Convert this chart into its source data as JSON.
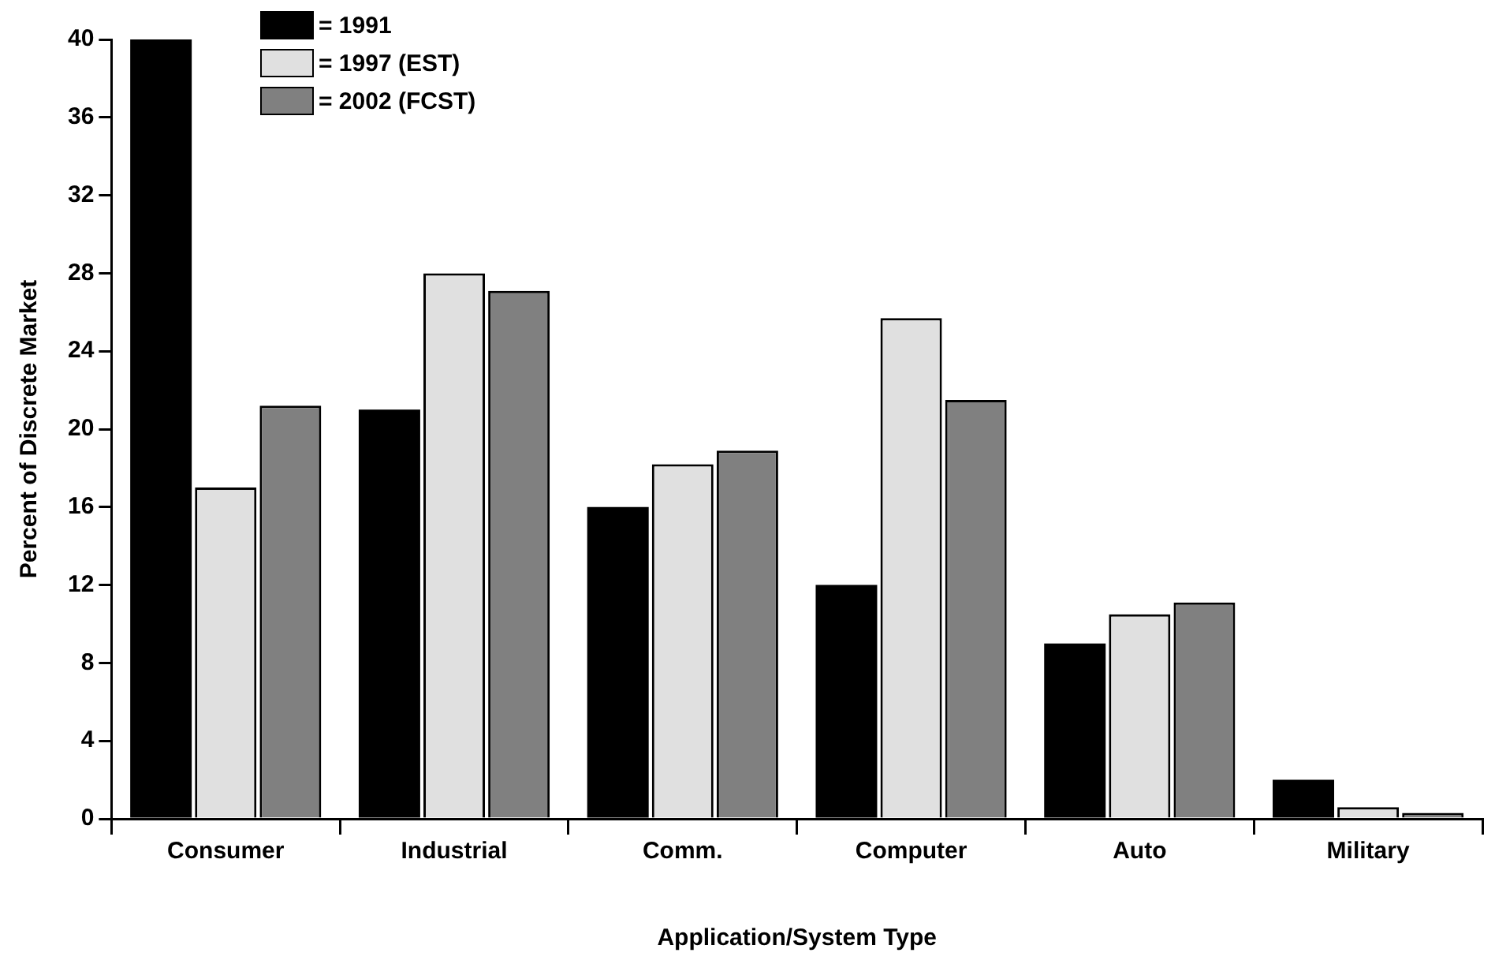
{
  "chart_data": {
    "type": "bar",
    "xlabel": "Application/System Type",
    "ylabel": "Percent of Discrete Market",
    "categories": [
      "Consumer",
      "Industrial",
      "Comm.",
      "Computer",
      "Auto",
      "Military"
    ],
    "series": [
      {
        "name": "= 1991",
        "color": "#000000",
        "values": [
          40,
          21,
          16,
          12,
          9,
          2
        ]
      },
      {
        "name": "= 1997 (EST)",
        "color": "#e0e0e0",
        "values": [
          17,
          28,
          18.2,
          25.7,
          10.5,
          0.6
        ]
      },
      {
        "name": "= 2002 (FCST)",
        "color": "#808080",
        "values": [
          21.2,
          27.1,
          18.9,
          21.5,
          11.1,
          0.3
        ]
      }
    ],
    "ylim": [
      0,
      40
    ],
    "yticks": [
      0,
      4,
      8,
      12,
      16,
      20,
      24,
      28,
      32,
      36,
      40
    ],
    "grid": false,
    "legend": "top left"
  }
}
